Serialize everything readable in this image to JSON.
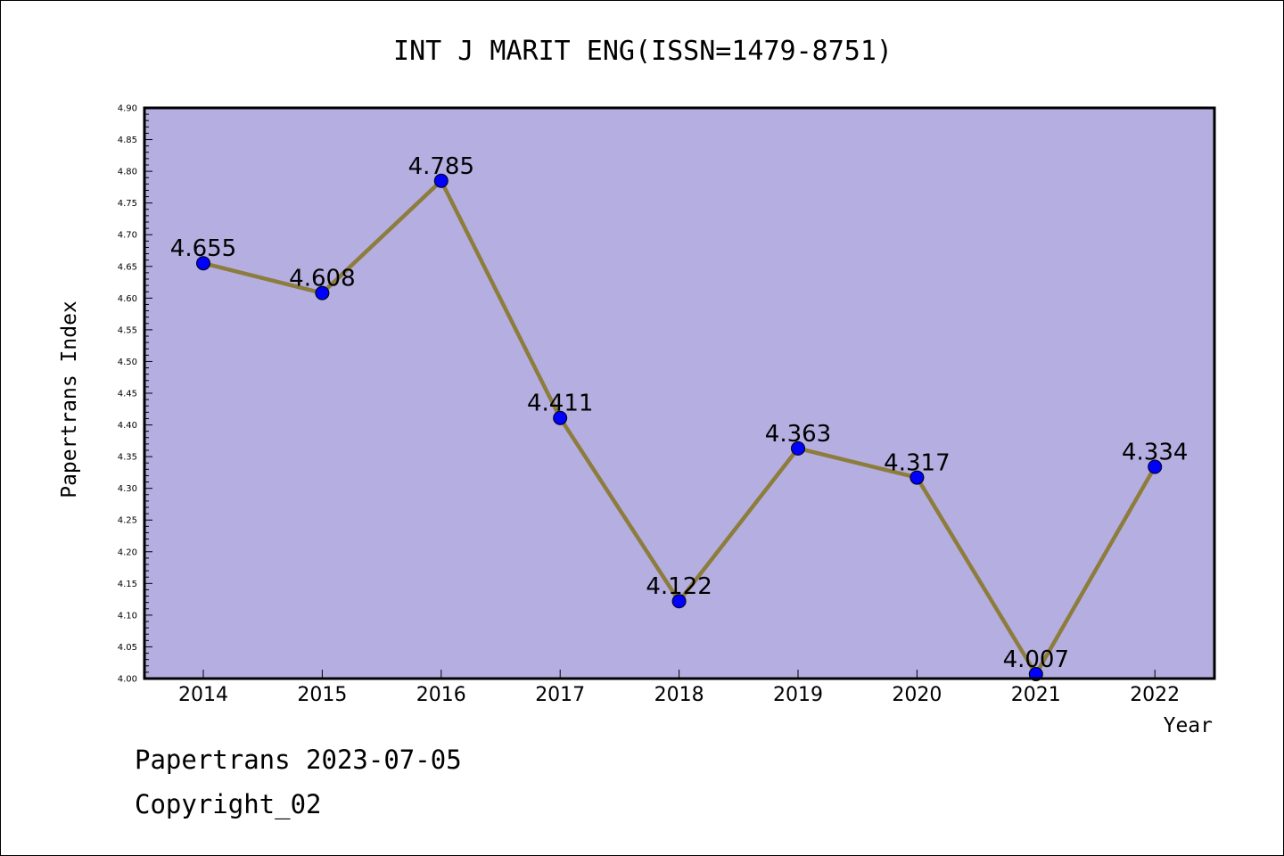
{
  "chart_data": {
    "type": "line",
    "title": "INT J MARIT ENG(ISSN=1479-8751)",
    "xlabel": "Year",
    "ylabel": "Papertrans Index",
    "categories": [
      "2014",
      "2015",
      "2016",
      "2017",
      "2018",
      "2019",
      "2020",
      "2021",
      "2022"
    ],
    "series": [
      {
        "values": [
          4.655,
          4.608,
          4.785,
          4.411,
          4.122,
          4.363,
          4.317,
          4.007,
          4.334
        ],
        "labels": [
          "4.655",
          "4.608",
          "4.785",
          "4.411",
          "4.122",
          "4.363",
          "4.317",
          "4.007",
          "4.334"
        ]
      }
    ],
    "ylim": [
      4.0,
      4.9
    ],
    "yticks": [
      "4.00",
      "4.05",
      "4.10",
      "4.15",
      "4.20",
      "4.25",
      "4.30",
      "4.35",
      "4.40",
      "4.45",
      "4.50",
      "4.55",
      "4.60",
      "4.65",
      "4.70",
      "4.75",
      "4.80",
      "4.85",
      "4.90"
    ],
    "grid": false,
    "colors": {
      "plot_background": "#b5aee1",
      "line": "#8c7d3c",
      "marker": "#0000ff"
    }
  },
  "footer": {
    "date_line": "Papertrans 2023-07-05",
    "copyright": "Copyright_02"
  }
}
